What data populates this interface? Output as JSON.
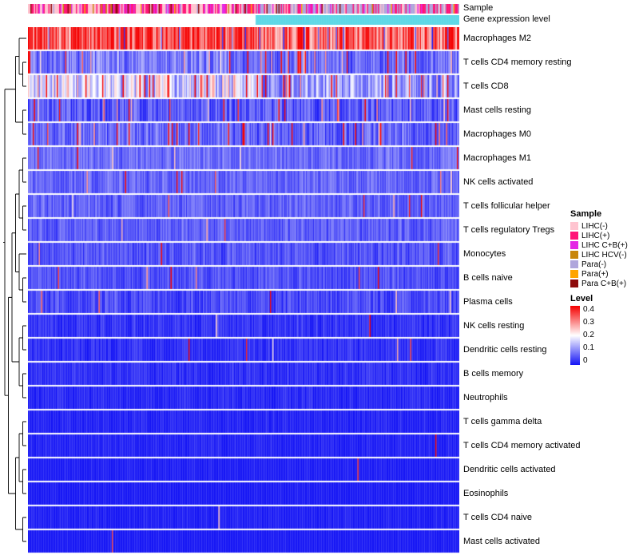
{
  "annotations": {
    "sample_label": "Sample",
    "expression_label": "Gene expression level",
    "expression_bar": {
      "left": "#FFFFFF",
      "right": "#5ED8E6"
    },
    "sample_bar": {
      "left": [
        [
          "#FFC4D0",
          0.42
        ],
        [
          "#FF1478",
          0.3
        ],
        [
          "#E426E4",
          0.12
        ],
        [
          "#AFA6DC",
          0.05
        ],
        [
          "#C8860B",
          0.04
        ],
        [
          "#FFA400",
          0.03
        ],
        [
          "#8E0B0B",
          0.04
        ]
      ],
      "right": [
        [
          "#AFA6DC",
          0.5
        ],
        [
          "#FF1478",
          0.22
        ],
        [
          "#FFC4D0",
          0.13
        ],
        [
          "#E426E4",
          0.08
        ],
        [
          "#FFA400",
          0.03
        ],
        [
          "#8E0B0B",
          0.02
        ],
        [
          "#C8860B",
          0.02
        ]
      ]
    }
  },
  "legend": {
    "sample": {
      "title": "Sample",
      "items": [
        {
          "label": "LIHC(-)",
          "color": "#FFC4D0"
        },
        {
          "label": "LIHC(+)",
          "color": "#FF1478"
        },
        {
          "label": "LIHC C+B(+)",
          "color": "#E426E4"
        },
        {
          "label": "LIHC HCV(-)",
          "color": "#C8860B"
        },
        {
          "label": "Para(-)",
          "color": "#AFA6DC"
        },
        {
          "label": "Para(+)",
          "color": "#FFA400"
        },
        {
          "label": "Para C+B(+)",
          "color": "#8E0B0B"
        }
      ]
    },
    "level": {
      "title": "Level",
      "ticks": [
        "0.4",
        "0.3",
        "0.2",
        "0.1",
        "0"
      ],
      "colors": [
        "#F50000",
        "#FFFFFF",
        "#1414F5"
      ]
    }
  },
  "chart_data": {
    "type": "heatmap",
    "n_cols": 360,
    "seed": 7,
    "vmax": 0.4,
    "split_fraction": 0.53,
    "colormap": {
      "low": "#1414F5",
      "mid": "#FFFFFF",
      "high": "#F50000"
    },
    "encoding": "rows = cell types; per-row estimated fraction distribution (base mean, spread, hot = prob of high outlier, cold = prob of low outlier, left_bias = extra level on left/LIHC half)",
    "rows": [
      {
        "name": "Macrophages M2",
        "base": 0.34,
        "spread": 0.11,
        "hot": 0.18,
        "cold": 0.05,
        "left_bias": 0.04
      },
      {
        "name": "T cells CD4 memory resting",
        "base": 0.07,
        "spread": 0.055,
        "hot": 0.07,
        "left_bias": 0.03
      },
      {
        "name": "T cells CD8",
        "base": 0.11,
        "spread": 0.08,
        "hot": 0.11,
        "left_bias": 0.12
      },
      {
        "name": "Mast cells resting",
        "base": 0.055,
        "spread": 0.05,
        "hot": 0.05
      },
      {
        "name": "Macrophages M0",
        "base": 0.06,
        "spread": 0.05,
        "hot": 0.06,
        "left_bias": 0.02
      },
      {
        "name": "Macrophages M1",
        "base": 0.07,
        "spread": 0.035,
        "hot": 0.015
      },
      {
        "name": "NK cells activated",
        "base": 0.065,
        "spread": 0.035,
        "hot": 0.012
      },
      {
        "name": "T cells follicular helper",
        "base": 0.06,
        "spread": 0.035,
        "hot": 0.012
      },
      {
        "name": "T cells regulatory Tregs",
        "base": 0.06,
        "spread": 0.035,
        "hot": 0.01
      },
      {
        "name": "Monocytes",
        "base": 0.05,
        "spread": 0.035,
        "hot": 0.015
      },
      {
        "name": "B cells naive",
        "base": 0.045,
        "spread": 0.03,
        "hot": 0.01
      },
      {
        "name": "Plasma cells",
        "base": 0.04,
        "spread": 0.035,
        "hot": 0.02
      },
      {
        "name": "NK cells resting",
        "base": 0.022,
        "spread": 0.025,
        "hot": 0.005
      },
      {
        "name": "Dendritic cells resting",
        "base": 0.02,
        "spread": 0.022,
        "hot": 0.004
      },
      {
        "name": "B cells memory",
        "base": 0.018,
        "spread": 0.02,
        "hot": 0.003
      },
      {
        "name": "Neutrophils",
        "base": 0.014,
        "spread": 0.018,
        "hot": 0.003
      },
      {
        "name": "T cells gamma delta",
        "base": 0.01,
        "spread": 0.014,
        "hot": 0.002
      },
      {
        "name": "T cells CD4 memory activated",
        "base": 0.01,
        "spread": 0.013,
        "hot": 0.002
      },
      {
        "name": "Dendritic cells activated",
        "base": 0.007,
        "spread": 0.01,
        "hot": 0.001
      },
      {
        "name": "Eosinophils",
        "base": 0.005,
        "spread": 0.008,
        "hot": 0.001
      },
      {
        "name": "T cells CD4 naive",
        "base": 0.007,
        "spread": 0.012,
        "hot": 0.001
      },
      {
        "name": "Mast cells activated",
        "base": 0.004,
        "spread": 0.007,
        "hot": 0.001
      }
    ],
    "dendrogram": [
      [
        [
          0,
          [
            1,
            2
          ]
        ],
        [
          3,
          4
        ]
      ],
      [
        [
          [
            [
              [
                5,
                6
              ],
              [
                7,
                8
              ]
            ],
            [
              9,
              [
                10,
                11
              ]
            ]
          ],
          [
            [
              12,
              13
            ],
            [
              14,
              15
            ]
          ]
        ],
        [
          [
            [
              16,
              17
            ],
            [
              18,
              19
            ]
          ],
          [
            20,
            21
          ]
        ]
      ]
    ]
  }
}
